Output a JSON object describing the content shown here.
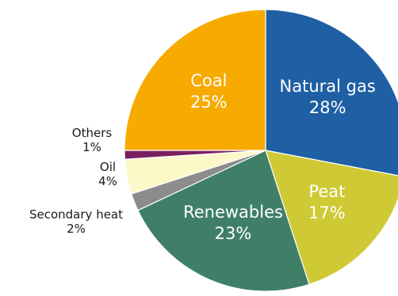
{
  "chart_data": {
    "type": "pie",
    "slices": [
      {
        "label": "Natural gas",
        "value": 28,
        "value_text": "28%",
        "color": "#1f5fa3",
        "label_placement": "inside"
      },
      {
        "label": "Peat",
        "value": 17,
        "value_text": "17%",
        "color": "#cfc935",
        "label_placement": "inside"
      },
      {
        "label": "Renewables",
        "value": 23,
        "value_text": "23%",
        "color": "#3f7f68",
        "label_placement": "inside"
      },
      {
        "label": "Secondary heat",
        "value": 2,
        "value_text": "2%",
        "color": "#8c8c8c",
        "label_placement": "outside"
      },
      {
        "label": "Oil",
        "value": 4,
        "value_text": "4%",
        "color": "#fdf8c8",
        "label_placement": "outside"
      },
      {
        "label": "Others",
        "value": 1,
        "value_text": "1%",
        "color": "#7a1f5e",
        "label_placement": "outside"
      },
      {
        "label": "Coal",
        "value": 25,
        "value_text": "25%",
        "color": "#f7aa00",
        "label_placement": "inside"
      }
    ],
    "start_angle_deg": 0,
    "direction": "clockwise",
    "legend": "none"
  }
}
